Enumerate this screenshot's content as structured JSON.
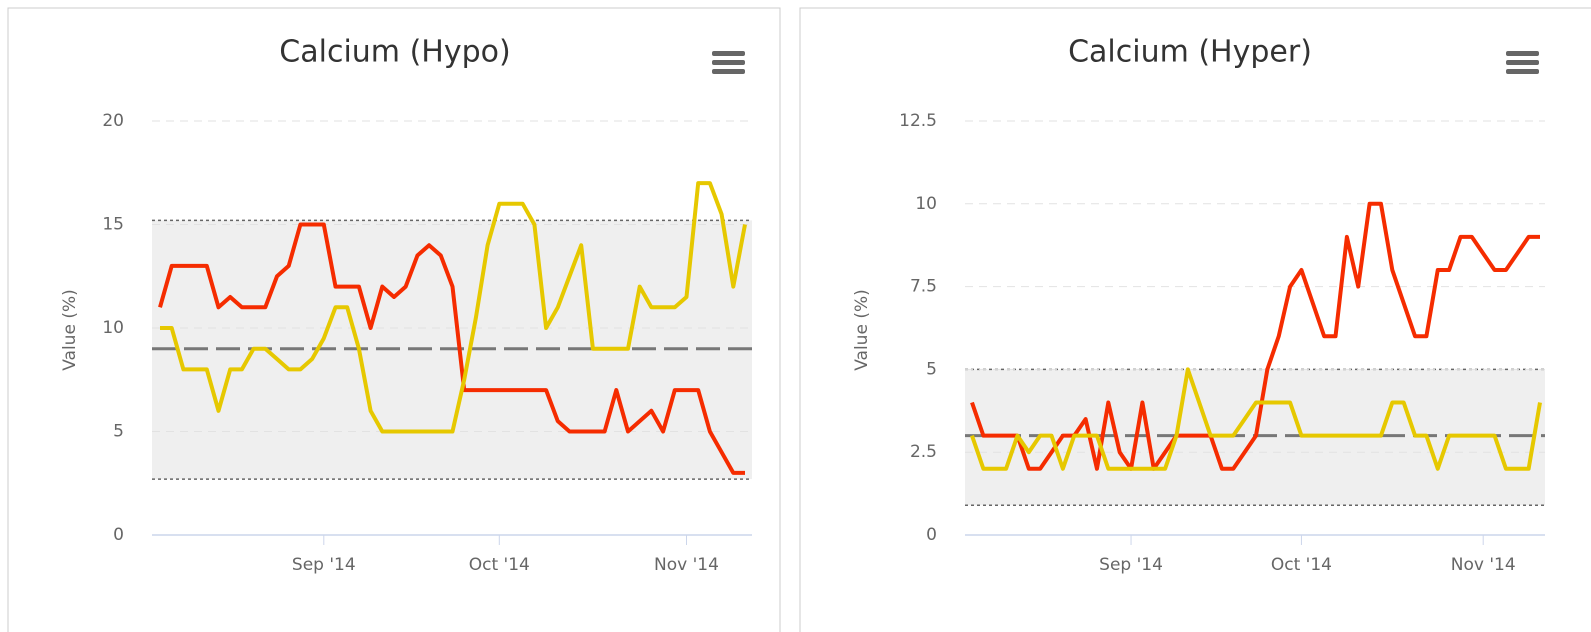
{
  "chart_data": [
    {
      "type": "line",
      "title": "Calcium (Hypo)",
      "y_label": "Value (%)",
      "categories": [
        null,
        null,
        null,
        null,
        null,
        null,
        null,
        null,
        null,
        null,
        null,
        null,
        null,
        null,
        "Sep '14",
        null,
        null,
        null,
        null,
        null,
        null,
        null,
        null,
        null,
        null,
        null,
        null,
        null,
        null,
        "Oct '14",
        null,
        null,
        null,
        null,
        null,
        null,
        null,
        null,
        null,
        null,
        null,
        null,
        null,
        null,
        null,
        "Nov '14",
        null,
        null,
        null,
        null,
        null
      ],
      "series": [
        {
          "color": "#f52c00",
          "values": [
            11,
            13,
            13,
            13,
            13,
            11,
            11.5,
            11,
            11,
            11,
            12.5,
            13,
            15,
            15,
            15,
            12,
            12,
            12,
            10,
            12,
            11.5,
            12,
            13.5,
            14,
            13.5,
            12,
            7,
            7,
            7,
            7,
            7,
            7,
            7,
            7,
            5.5,
            5,
            5,
            5,
            5,
            7,
            5,
            5.5,
            6,
            5,
            7,
            7,
            7,
            5,
            4,
            3,
            3
          ]
        },
        {
          "color": "#e6c800",
          "values": [
            10,
            10,
            8,
            8,
            8,
            6,
            8,
            8,
            9,
            9,
            8.5,
            8,
            8,
            8.5,
            9.5,
            11,
            11,
            9,
            6,
            5,
            5,
            5,
            5,
            5,
            5,
            5,
            7.5,
            10.5,
            14,
            16,
            16,
            16,
            15,
            10,
            11,
            12.5,
            14,
            9,
            9,
            9,
            9,
            12,
            11,
            11,
            11,
            11.5,
            17,
            17,
            15.5,
            12,
            15
          ]
        }
      ],
      "ylim": [
        0,
        20
      ],
      "yticks": [
        0,
        5,
        10,
        15,
        20
      ],
      "grid": true,
      "plot_band": [
        2.7,
        15.2
      ],
      "mean_line": 9
    },
    {
      "type": "line",
      "title": "Calcium (Hyper)",
      "y_label": "Value (%)",
      "categories": [
        null,
        null,
        null,
        null,
        null,
        null,
        null,
        null,
        null,
        null,
        null,
        null,
        null,
        null,
        "Sep '14",
        null,
        null,
        null,
        null,
        null,
        null,
        null,
        null,
        null,
        null,
        null,
        null,
        null,
        null,
        "Oct '14",
        null,
        null,
        null,
        null,
        null,
        null,
        null,
        null,
        null,
        null,
        null,
        null,
        null,
        null,
        null,
        "Nov '14",
        null,
        null,
        null,
        null,
        null
      ],
      "series": [
        {
          "color": "#f52c00",
          "values": [
            4,
            3,
            3,
            3,
            3,
            2,
            2,
            2.5,
            3,
            3,
            3.5,
            2,
            4,
            2.5,
            2,
            4,
            2,
            2.5,
            3,
            3,
            3,
            3,
            2,
            2,
            2.5,
            3,
            5,
            6,
            7.5,
            8,
            7,
            6,
            6,
            9,
            7.5,
            10,
            10,
            8,
            7,
            6,
            6,
            8,
            8,
            9,
            9,
            8.5,
            8,
            8,
            8.5,
            9,
            9
          ]
        },
        {
          "color": "#e6c800",
          "values": [
            3,
            2,
            2,
            2,
            3,
            2.5,
            3,
            3,
            2,
            3,
            3,
            3,
            2,
            2,
            2,
            2,
            2,
            2,
            3,
            5,
            4,
            3,
            3,
            3,
            3.5,
            4,
            4,
            4,
            4,
            3,
            3,
            3,
            3,
            3,
            3,
            3,
            3,
            4,
            4,
            3,
            3,
            2,
            3,
            3,
            3,
            3,
            3,
            2,
            2,
            2,
            4
          ]
        }
      ],
      "ylim": [
        0,
        12.5
      ],
      "yticks": [
        0,
        2.5,
        5,
        7.5,
        10,
        12.5
      ],
      "grid": true,
      "plot_band": [
        0.9,
        5
      ],
      "mean_line": 3
    }
  ]
}
